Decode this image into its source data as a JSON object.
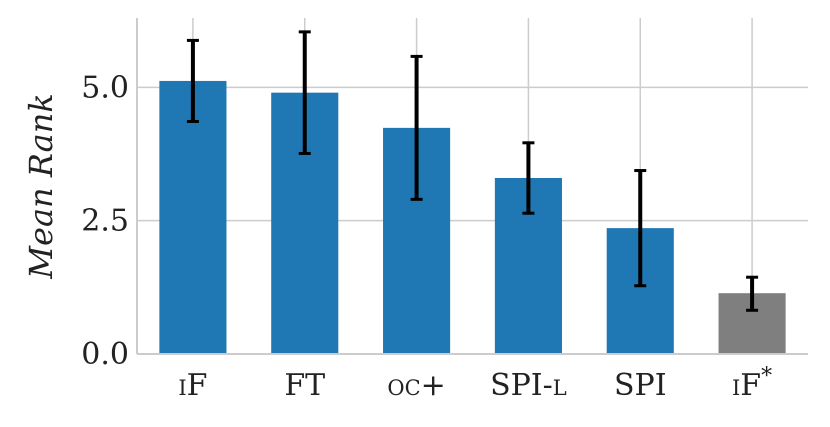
{
  "chart_data": {
    "type": "bar",
    "categories": [
      {
        "label": "iF",
        "smallcaps": true
      },
      {
        "label": "FT",
        "smallcaps": false
      },
      {
        "label": "oc+",
        "smallcaps": true
      },
      {
        "label": "SPI-l",
        "smallcaps": false,
        "smallcaps_part": "l",
        "main_part": "SPI-"
      },
      {
        "label": "SPI",
        "smallcaps": false
      },
      {
        "label": "iF*",
        "smallcaps": true
      }
    ],
    "values": [
      5.12,
      4.9,
      4.24,
      3.3,
      2.36,
      1.14
    ],
    "errors": [
      [
        4.36,
        5.88
      ],
      [
        3.76,
        6.04
      ],
      [
        2.9,
        5.58
      ],
      [
        2.64,
        3.96
      ],
      [
        1.28,
        3.44
      ],
      [
        0.82,
        1.44
      ]
    ],
    "bar_colors": [
      "#1f77b4",
      "#1f77b4",
      "#1f77b4",
      "#1f77b4",
      "#1f77b4",
      "#7f7f7f"
    ],
    "title": "",
    "xlabel": "",
    "ylabel": "Mean Rank",
    "ylim": [
      0,
      6.3
    ],
    "yticks": [
      0.0,
      2.5,
      5.0
    ],
    "ytick_labels": [
      "0.0",
      "2.5",
      "5.0"
    ],
    "grid": true,
    "legend": "none"
  }
}
